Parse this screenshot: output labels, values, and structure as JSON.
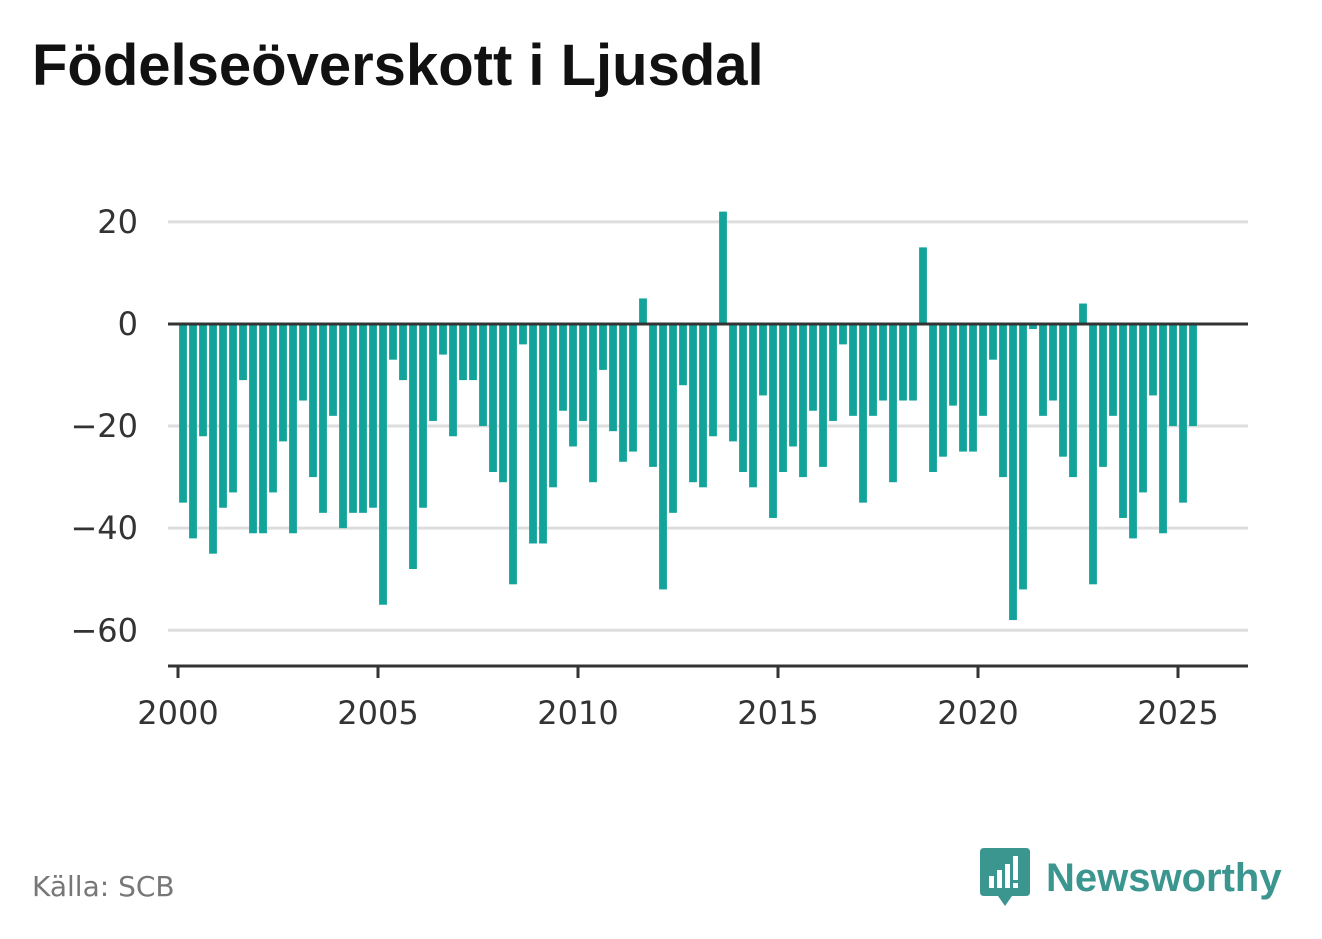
{
  "title": "Födelseöverskott i Ljusdal",
  "source": "Källa: SCB",
  "brand": {
    "name": "Newsworthy",
    "icon": "bar-chart-speech-bubble-icon"
  },
  "colors": {
    "bar": "#12a39a",
    "grid": "#dddddd",
    "axis": "#333333",
    "brand": "#3b9690"
  },
  "chart_data": {
    "type": "bar",
    "title": "Födelseöverskott i Ljusdal",
    "xlabel": "",
    "ylabel": "",
    "frequency": "quarterly",
    "x_start": 2000,
    "xlim": [
      1999.75,
      2026.75
    ],
    "ylim": [
      -67,
      28
    ],
    "yticks": [
      20,
      0,
      -20,
      -40,
      -60
    ],
    "ytick_labels": [
      "20",
      "0",
      "−20",
      "−40",
      "−60"
    ],
    "xticks": [
      2000,
      2005,
      2010,
      2015,
      2020,
      2025
    ],
    "xtick_labels": [
      "2000",
      "2005",
      "2010",
      "2015",
      "2020",
      "2025"
    ],
    "grid": true,
    "values": [
      -35,
      -42,
      -22,
      -45,
      -36,
      -33,
      -11,
      -41,
      -41,
      -33,
      -23,
      -41,
      -15,
      -30,
      -37,
      -18,
      -40,
      -37,
      -37,
      -36,
      -55,
      -7,
      -11,
      -48,
      -36,
      -19,
      -6,
      -22,
      -11,
      -11,
      -20,
      -29,
      -31,
      -51,
      -4,
      -43,
      -43,
      -32,
      -17,
      -24,
      -19,
      -31,
      -9,
      -21,
      -27,
      -25,
      5,
      -28,
      -52,
      -37,
      -12,
      -31,
      -32,
      -22,
      22,
      -23,
      -29,
      -32,
      -14,
      -38,
      -29,
      -24,
      -30,
      -17,
      -28,
      -19,
      -4,
      -18,
      -35,
      -18,
      -15,
      -31,
      -15,
      -15,
      15,
      -29,
      -26,
      -16,
      -25,
      -25,
      -18,
      -7,
      -30,
      -58,
      -52,
      -1,
      -18,
      -15,
      -26,
      -30,
      4,
      -51,
      -28,
      -18,
      -38,
      -42,
      -33,
      -14,
      -41,
      -20,
      -35,
      -20
    ]
  }
}
